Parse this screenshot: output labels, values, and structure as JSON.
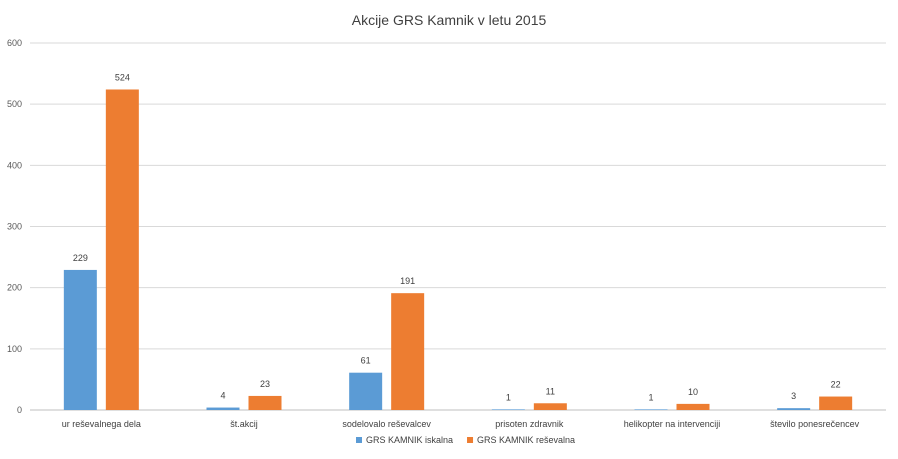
{
  "chart_data": {
    "type": "bar",
    "title": "Akcije GRS Kamnik v letu 2015",
    "xlabel": "",
    "ylabel": "",
    "categories": [
      "ur reševalnega dela",
      "št.akcij",
      "sodelovalo reševalcev",
      "prisoten zdravnik",
      "helikopter na intervenciji",
      "število ponesrečencev"
    ],
    "series": [
      {
        "name": "GRS KAMNIK iskalna",
        "color": "#5b9bd5",
        "values": [
          229,
          4,
          61,
          1,
          1,
          3
        ]
      },
      {
        "name": "GRS KAMNIK reševalna",
        "color": "#ed7d31",
        "values": [
          524,
          23,
          191,
          11,
          10,
          22
        ]
      }
    ],
    "ylim": [
      0,
      600
    ],
    "yticks": [
      0,
      100,
      200,
      300,
      400,
      500,
      600
    ],
    "grid": true,
    "legend": "bottom"
  }
}
